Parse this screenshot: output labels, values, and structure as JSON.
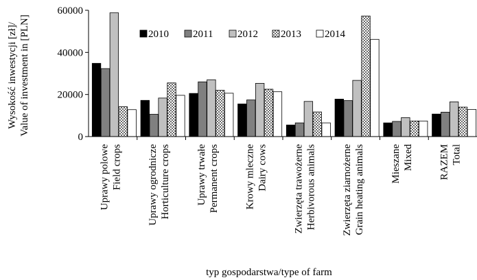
{
  "chart_data": {
    "type": "bar",
    "categories": [
      [
        "Uprawy polowe",
        "Field crops"
      ],
      [
        "Uprawy ogrodnicze",
        "Horticulture crops"
      ],
      [
        "Uprawy trwałe",
        "Permanent crops"
      ],
      [
        "Krowy mleczne",
        "Dairy cows"
      ],
      [
        "Zwierzęta trawożerne",
        "Herbivorous animals"
      ],
      [
        "Zwierzęta ziarnożerne",
        "Grain heating animals"
      ],
      [
        "Mieszane",
        "Mixed"
      ],
      [
        "RAZEM",
        "Total"
      ]
    ],
    "series": [
      {
        "name": "2010",
        "fill": "#000000",
        "pattern": "solid",
        "values": [
          34800,
          17200,
          20500,
          15500,
          5500,
          17800,
          6500,
          10700
        ]
      },
      {
        "name": "2011",
        "fill": "#808080",
        "pattern": "solid",
        "values": [
          32300,
          10600,
          26000,
          17400,
          6500,
          17100,
          7200,
          11600
        ]
      },
      {
        "name": "2012",
        "fill": "#c0c0c0",
        "pattern": "solid",
        "values": [
          58800,
          18300,
          27000,
          25300,
          16700,
          26700,
          9000,
          16500
        ]
      },
      {
        "name": "2013",
        "fill": "#ffffff",
        "pattern": "dots",
        "values": [
          14200,
          25500,
          22000,
          22500,
          11700,
          57300,
          7400,
          14000
        ]
      },
      {
        "name": "2014",
        "fill": "#ffffff",
        "pattern": "solid",
        "values": [
          12800,
          19600,
          20600,
          21300,
          6500,
          46200,
          7400,
          12900
        ]
      }
    ],
    "y_ticks": [
      "0",
      "20000",
      "40000",
      "60000"
    ],
    "ylim": [
      0,
      60000
    ],
    "ylabel": [
      "Wysokość inwestycji [zł]/",
      "Value of investment in [PLN]"
    ],
    "xlabel": "typ gospodarstwa/type of farm",
    "legend_position": "top-left"
  }
}
